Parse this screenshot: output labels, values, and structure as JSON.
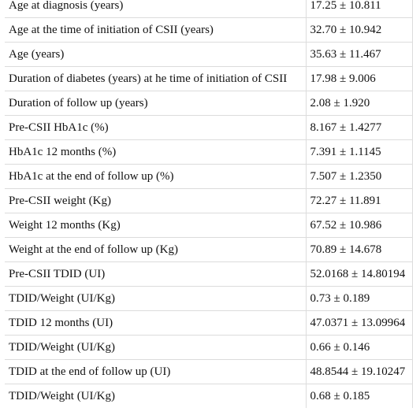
{
  "rows": [
    {
      "label": "Age at diagnosis (years)",
      "value": "17.25 ± 10.811"
    },
    {
      "label": "Age at the time of initiation of CSII (years)",
      "value": "32.70 ± 10.942"
    },
    {
      "label": "Age (years)",
      "value": "35.63 ± 11.467"
    },
    {
      "label": "Duration of diabetes (years) at he time of initiation of CSII",
      "value": "17.98 ± 9.006"
    },
    {
      "label": "Duration of follow up (years)",
      "value": "2.08 ± 1.920"
    },
    {
      "label": "Pre-CSII HbA1c (%)",
      "value": "8.167 ± 1.4277"
    },
    {
      "label": "HbA1c 12 months (%)",
      "value": "7.391 ± 1.1145"
    },
    {
      "label": "HbA1c at the end of follow up (%)",
      "value": "7.507 ± 1.2350"
    },
    {
      "label": "Pre-CSII weight (Kg)",
      "value": "72.27 ± 11.891"
    },
    {
      "label": "Weight 12 months (Kg)",
      "value": "67.52 ± 10.986"
    },
    {
      "label": "Weight at the end of follow up (Kg)",
      "value": "70.89 ± 14.678"
    },
    {
      "label": "Pre-CSII TDID (UI)",
      "value": "52.0168 ± 14.80194"
    },
    {
      "label": "TDID/Weight (UI/Kg)",
      "value": "0.73 ± 0.189"
    },
    {
      "label": "TDID 12 months (UI)",
      "value": "47.0371 ± 13.09964"
    },
    {
      "label": "TDID/Weight (UI/Kg)",
      "value": "0.66 ± 0.146"
    },
    {
      "label": "TDID at the end of follow up (UI)",
      "value": "48.8544 ± 19.10247"
    },
    {
      "label": "TDID/Weight (UI/Kg)",
      "value": "0.68 ± 0.185"
    }
  ]
}
